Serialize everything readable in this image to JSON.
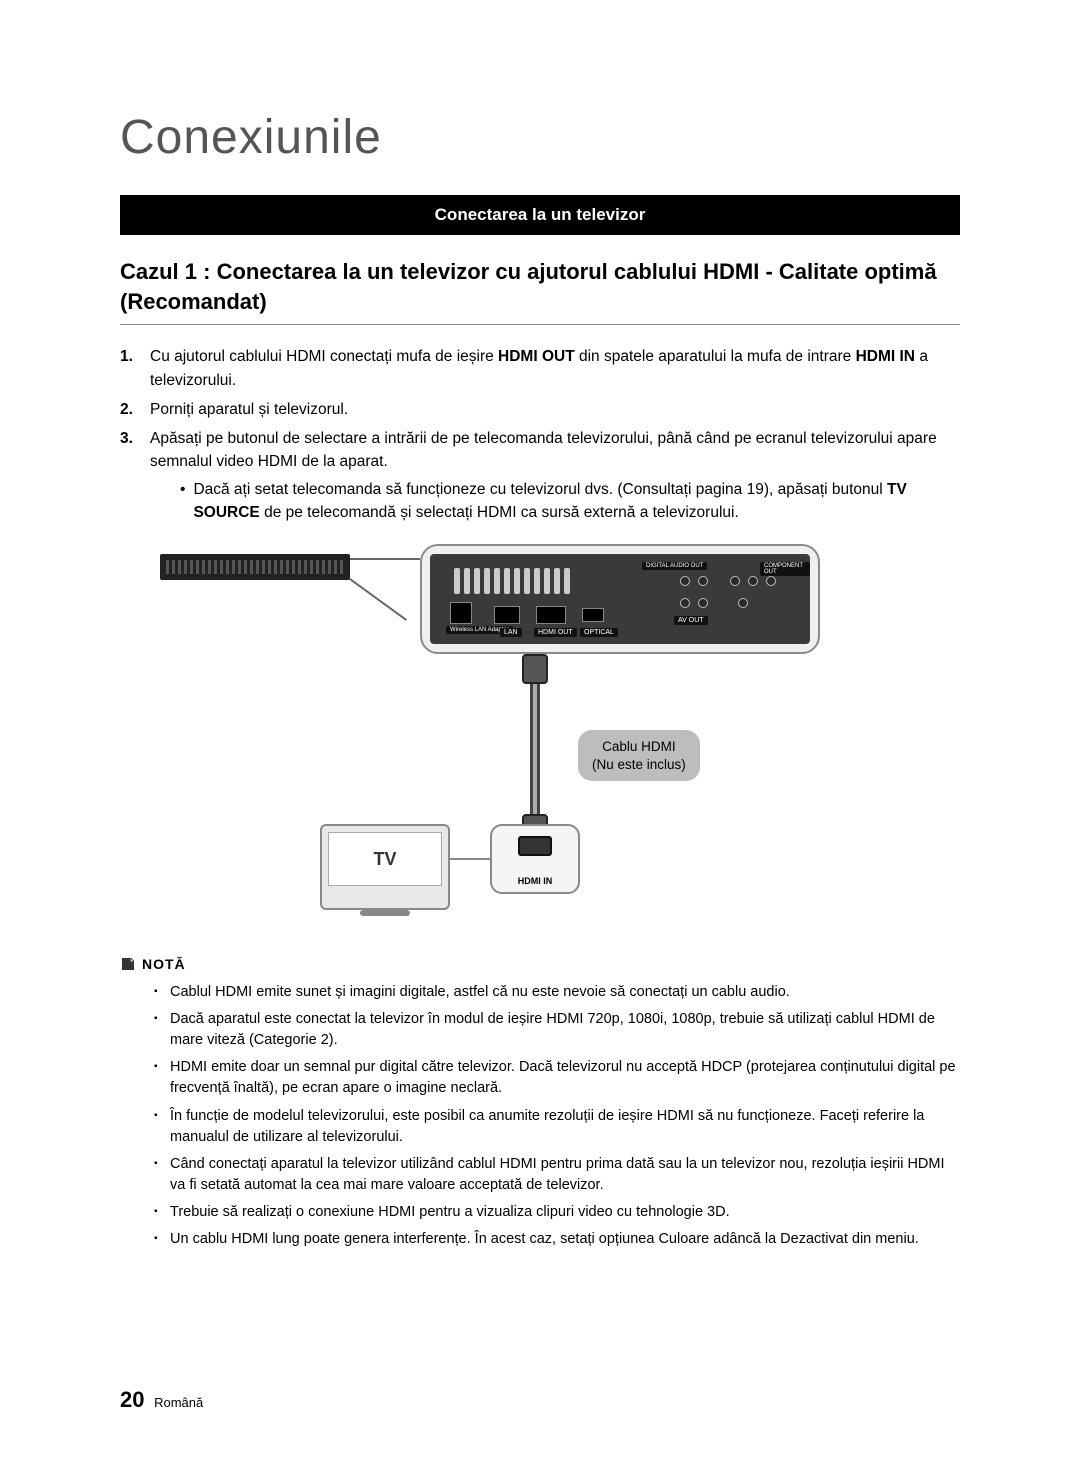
{
  "title": "Conexiunile",
  "section_bar": "Conectarea la un televizor",
  "subtitle": "Cazul 1 : Conectarea la un televizor cu ajutorul cablului HDMI - Calitate optimă (Recomandat)",
  "steps": [
    {
      "num": "1.",
      "html": "Cu ajutorul cablului HDMI conectați mufa de ieșire <b>HDMI OUT</b> din spatele aparatului la mufa de intrare <b>HDMI IN</b> a televizorului."
    },
    {
      "num": "2.",
      "html": "Porniți aparatul și televizorul."
    },
    {
      "num": "3.",
      "html": "Apăsați pe butonul de selectare a intrării de pe telecomanda televizorului, până când pe ecranul televizorului apare semnalul video HDMI de la aparat.",
      "sub": "Dacă ați setat telecomanda să funcționeze cu televizorul dvs. (Consultați pagina 19), apăsați butonul <b>TV SOURCE</b> de pe telecomandă și selectați HDMI ca sursă externă a televizorului."
    }
  ],
  "diagram": {
    "ports": {
      "lan": "LAN",
      "hdmi_out": "HDMI OUT",
      "optical": "OPTICAL",
      "av_out": "AV OUT",
      "digital_audio": "DIGITAL AUDIO OUT",
      "component": "COMPONENT OUT",
      "wireless": "Wireless LAN Adapter"
    },
    "cable_label_line1": "Cablu HDMI",
    "cable_label_line2": "(Nu este inclus)",
    "tv_text": "TV",
    "hdmi_in": "HDMI IN"
  },
  "note_head": "NOTĂ",
  "notes": [
    "Cablul HDMI emite sunet și imagini digitale, astfel că nu este nevoie să conectați un cablu audio.",
    "Dacă aparatul este conectat la televizor în modul de ieșire HDMI 720p, 1080i, 1080p, trebuie să utilizați cablul HDMI de mare viteză (Categorie 2).",
    "HDMI emite doar un semnal pur digital către televizor.\nDacă televizorul nu acceptă HDCP (protejarea conținutului digital pe frecvență înaltă), pe ecran apare o imagine neclară.",
    "În funcție de modelul televizorului, este posibil ca anumite rezoluții de ieșire HDMI să nu funcționeze. Faceți referire la manualul de utilizare al televizorului.",
    "Când conectați aparatul la televizor utilizând cablul HDMI pentru prima dată sau la un televizor nou, rezoluția ieșirii HDMI va fi setată automat la cea mai mare valoare acceptată de televizor.",
    "Trebuie să realizați o conexiune HDMI pentru a vizualiza clipuri video cu tehnologie 3D.",
    "Un cablu HDMI lung poate genera interferențe. În acest caz, setați opțiunea Culoare adâncă la Dezactivat din meniu."
  ],
  "footer": {
    "page": "20",
    "lang": "Română"
  },
  "colors": {
    "title": "#555555",
    "bar_bg": "#000000",
    "bar_fg": "#ffffff",
    "outline": "#8a8a8a",
    "panel_bg": "#f5f5f5",
    "label_bg": "#bdbdbd"
  }
}
